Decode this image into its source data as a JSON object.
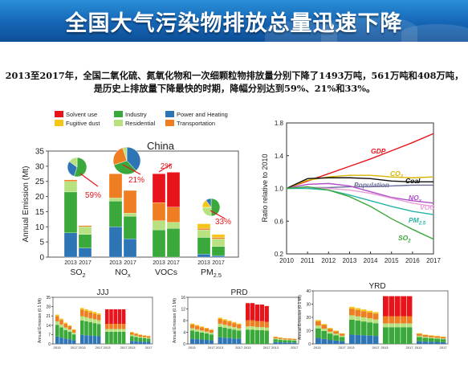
{
  "banner": {
    "title": "全国大气污染物排放总量迅速下降"
  },
  "summary": {
    "line1": "2013至2017年，全国二氧化硫、氮氧化物和一次细颗粒物排放量分别下降了1493万吨，561万吨和408万吨，",
    "line2": "是历史上排放量下降最快的时期，降幅分别达到59%、21%和33%。"
  },
  "colors": {
    "solvent": "#e8141c",
    "industry": "#3aa83a",
    "power": "#2e75b6",
    "fugitive": "#f5c518",
    "residential": "#b7e27f",
    "transport": "#ef7d22"
  },
  "chart_data": [
    {
      "type": "bar",
      "title": "China",
      "ylabel": "Annual Emission (Mt)",
      "ylim": [
        0,
        35
      ],
      "yticks": [
        0,
        5,
        10,
        15,
        20,
        25,
        30,
        35
      ],
      "legend": [
        "Solvent use",
        "Industry",
        "Power and Heating",
        "Fugitive dust",
        "Residential",
        "Transportation"
      ],
      "groups": [
        {
          "label": "SO",
          "sub": "2",
          "years": [
            "2013",
            "2017"
          ],
          "change": "59%",
          "stacks": [
            {
              "year": "2013",
              "power": 8,
              "industry": 13.5,
              "residential": 3.5,
              "transport": 0.5
            },
            {
              "year": "2017",
              "power": 3,
              "industry": 4.5,
              "residential": 2.5,
              "transport": 0.4
            }
          ]
        },
        {
          "label": "NO",
          "sub": "x",
          "years": [
            "2013",
            "2017"
          ],
          "change": "21%",
          "stacks": [
            {
              "year": "2013",
              "power": 10,
              "industry": 8.5,
              "residential": 1,
              "transport": 8
            },
            {
              "year": "2017",
              "power": 6,
              "industry": 7.5,
              "residential": 1,
              "transport": 7.5
            }
          ]
        },
        {
          "label": "VOCs",
          "sub": "",
          "years": [
            "2013",
            "2017"
          ],
          "change": "2%",
          "stacks": [
            {
              "year": "2013",
              "industry": 9,
              "residential": 3,
              "transport": 6,
              "solvent": 9.5
            },
            {
              "year": "2017",
              "industry": 9.5,
              "residential": 2,
              "transport": 5,
              "solvent": 11.5
            }
          ]
        },
        {
          "label": "PM",
          "sub": "2.5",
          "years": [
            "2013",
            "2017"
          ],
          "change": "33%",
          "stacks": [
            {
              "year": "2013",
              "power": 1,
              "industry": 5.5,
              "residential": 2.5,
              "transport": 0.5,
              "fugitive": 1.5
            },
            {
              "year": "2017",
              "power": 0.5,
              "industry": 3,
              "residential": 2.5,
              "transport": 0.5,
              "fugitive": 1
            }
          ]
        }
      ]
    },
    {
      "type": "line",
      "ylabel": "Ratio relative to 2010",
      "x": [
        2010,
        2011,
        2012,
        2013,
        2014,
        2015,
        2016,
        2017
      ],
      "ylim": [
        0.2,
        1.8
      ],
      "yticks": [
        0.2,
        0.6,
        1.0,
        1.4,
        1.8
      ],
      "series": [
        {
          "name": "GDP",
          "color": "#e8141c",
          "values": [
            1.0,
            1.09,
            1.18,
            1.27,
            1.36,
            1.46,
            1.56,
            1.67
          ]
        },
        {
          "name": "CO2",
          "color": "#d8b400",
          "values": [
            1.0,
            1.1,
            1.14,
            1.16,
            1.16,
            1.14,
            1.13,
            1.14
          ]
        },
        {
          "name": "Coal",
          "color": "#111111",
          "values": [
            1.0,
            1.12,
            1.13,
            1.13,
            1.12,
            1.09,
            1.08,
            1.08
          ]
        },
        {
          "name": "Population",
          "color": "#6b6b9b",
          "values": [
            1.0,
            1.01,
            1.01,
            1.02,
            1.02,
            1.03,
            1.04,
            1.04
          ]
        },
        {
          "name": "NOx",
          "color": "#b04fc8",
          "values": [
            1.0,
            1.05,
            1.06,
            1.03,
            0.96,
            0.89,
            0.85,
            0.82
          ]
        },
        {
          "name": "VOC",
          "color": "#e8a0d8",
          "values": [
            1.0,
            1.01,
            1.0,
            0.98,
            0.94,
            0.88,
            0.82,
            0.78
          ]
        },
        {
          "name": "PM2.5",
          "color": "#28b3a8",
          "values": [
            1.0,
            1.0,
            0.98,
            0.92,
            0.85,
            0.78,
            0.72,
            0.68
          ]
        },
        {
          "name": "SO2",
          "color": "#3aa83a",
          "values": [
            1.0,
            1.02,
            0.98,
            0.9,
            0.78,
            0.63,
            0.5,
            0.38
          ]
        }
      ],
      "labels": [
        {
          "text": "GDP",
          "series": "GDP"
        },
        {
          "text": "CO",
          "sub": "2",
          "series": "CO2"
        },
        {
          "text": "Coal",
          "series": "Coal"
        },
        {
          "text": "Population",
          "series": "Population"
        },
        {
          "text": "NO",
          "sub": "x",
          "series": "NOx"
        },
        {
          "text": "VOC",
          "series": "VOC"
        },
        {
          "text": "PM",
          "sub": "2.5",
          "series": "PM2.5"
        },
        {
          "text": "SO",
          "sub": "2",
          "series": "SO2"
        }
      ]
    },
    {
      "type": "bar",
      "title": "JJJ",
      "ylabel": "Annual Emission (0.1 Mt)",
      "ylim": [
        0,
        35
      ],
      "yticks": [
        0,
        7,
        14,
        21,
        28,
        35
      ],
      "groups": [
        {
          "years": [
            "2013",
            "2017"
          ],
          "totals": [
            22,
            19,
            16,
            14,
            11
          ]
        },
        {
          "years": [
            "2013",
            "2017"
          ],
          "totals": [
            27,
            26,
            25,
            24,
            23
          ]
        },
        {
          "years": [
            "2013",
            "2017"
          ],
          "totals": [
            26,
            26,
            26,
            26,
            26
          ]
        },
        {
          "years": [
            "2013",
            "2017"
          ],
          "totals": [
            9,
            8,
            7,
            6.5,
            6
          ]
        }
      ]
    },
    {
      "type": "bar",
      "title": "PRD",
      "ylabel": "Annual Emission (0.1 Mt)",
      "ylim": [
        0,
        16
      ],
      "yticks": [
        0,
        4,
        8,
        12,
        16
      ],
      "groups": [
        {
          "years": [
            "2013",
            "2017"
          ],
          "totals": [
            7,
            6.5,
            6,
            5.5,
            5
          ]
        },
        {
          "years": [
            "2013",
            "2017"
          ],
          "totals": [
            9,
            8.5,
            8,
            7.5,
            7
          ]
        },
        {
          "years": [
            "2013",
            "2017"
          ],
          "totals": [
            14,
            14,
            13.5,
            13.5,
            13
          ]
        },
        {
          "years": [
            "2013",
            "2017"
          ],
          "totals": [
            2.5,
            2.2,
            2,
            1.9,
            1.8
          ]
        }
      ]
    },
    {
      "type": "bar",
      "title": "YRD",
      "ylabel": "Annual Emission (0.1 Mt)",
      "ylim": [
        0,
        40
      ],
      "yticks": [
        0,
        10,
        20,
        30,
        40
      ],
      "groups": [
        {
          "years": [
            "2013",
            "2017"
          ],
          "totals": [
            18,
            15,
            12,
            10,
            8
          ]
        },
        {
          "years": [
            "2013",
            "2017"
          ],
          "totals": [
            28,
            27,
            26,
            25,
            24
          ]
        },
        {
          "years": [
            "2013",
            "2017"
          ],
          "totals": [
            36,
            36,
            36,
            36,
            36
          ]
        },
        {
          "years": [
            "2013",
            "2017"
          ],
          "totals": [
            8,
            7,
            6.5,
            6,
            5.5
          ]
        }
      ]
    }
  ]
}
